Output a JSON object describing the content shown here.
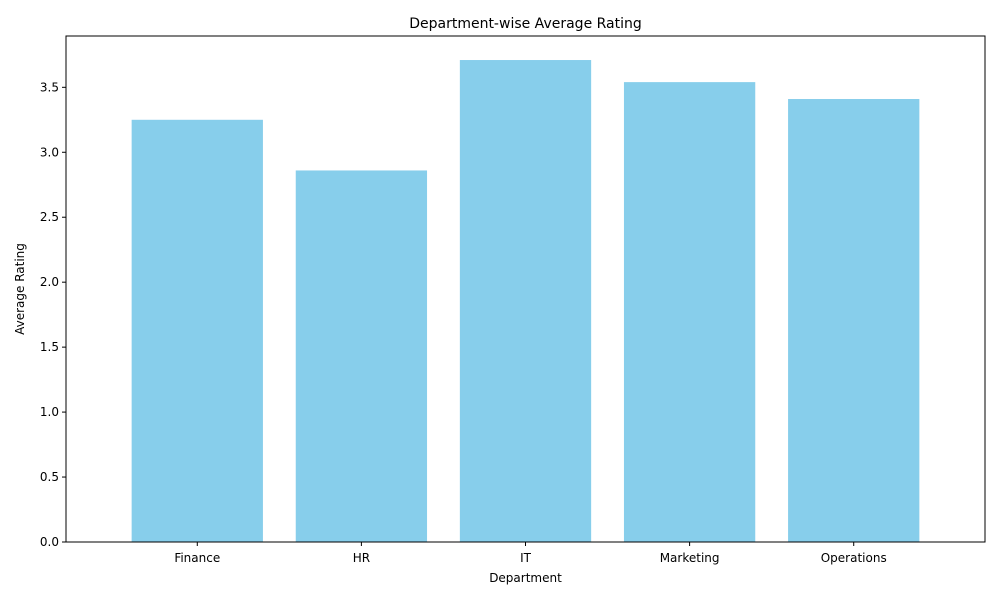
{
  "chart_data": {
    "type": "bar",
    "title": "Department-wise Average Rating",
    "xlabel": "Department",
    "ylabel": "Average Rating",
    "categories": [
      "Finance",
      "HR",
      "IT",
      "Marketing",
      "Operations"
    ],
    "values": [
      3.25,
      2.86,
      3.71,
      3.54,
      3.41
    ],
    "ylim": [
      0,
      3.895
    ],
    "yticks": [
      "0.0",
      "0.5",
      "1.0",
      "1.5",
      "2.0",
      "2.5",
      "3.0",
      "3.5"
    ],
    "bar_color": "#87ceeb",
    "grid": false,
    "legend": "none"
  }
}
